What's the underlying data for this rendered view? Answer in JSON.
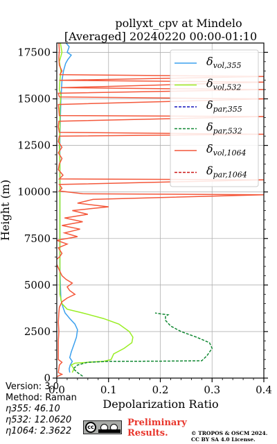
{
  "chart_data": {
    "type": "line",
    "title_line1": "pollyxt_cpv at Mindelo",
    "title_line2": "[Averaged] 20240220 00:00-01:10",
    "xlabel": "Depolarization Ratio",
    "ylabel": "Height (m)",
    "xlim": [
      0,
      0.4
    ],
    "ylim": [
      0,
      18000
    ],
    "xticks": [
      "0.0",
      "0.1",
      "0.2",
      "0.3",
      "0.4"
    ],
    "xtick_values": [
      0,
      0.1,
      0.2,
      0.3,
      0.4
    ],
    "yticks": [
      "0",
      "2500",
      "5000",
      "7500",
      "10000",
      "12500",
      "15000",
      "17500"
    ],
    "ytick_values": [
      0,
      2500,
      5000,
      7500,
      10000,
      12500,
      15000,
      17500
    ],
    "grid": true,
    "legend_placement": "top-right",
    "series": [
      {
        "name": "vol,355",
        "sym": "δ",
        "sub": "vol,355",
        "color": "#3aa0ee",
        "dash": "solid",
        "points": [
          [
            0.025,
            300
          ],
          [
            0.024,
            500
          ],
          [
            0.026,
            700
          ],
          [
            0.03,
            900
          ],
          [
            0.025,
            1100
          ],
          [
            0.028,
            1400
          ],
          [
            0.033,
            1800
          ],
          [
            0.038,
            2200
          ],
          [
            0.04,
            2600
          ],
          [
            0.035,
            2900
          ],
          [
            0.025,
            3200
          ],
          [
            0.016,
            3500
          ],
          [
            0.012,
            3800
          ],
          [
            0.008,
            4200
          ],
          [
            0.007,
            5000
          ],
          [
            0.006,
            6000
          ],
          [
            0.006,
            7000
          ],
          [
            0.006,
            8000
          ],
          [
            0.006,
            9000
          ],
          [
            0.006,
            10000
          ],
          [
            0.006,
            11000
          ],
          [
            0.006,
            12000
          ],
          [
            0.006,
            13000
          ],
          [
            0.007,
            14000
          ],
          [
            0.008,
            15000
          ],
          [
            0.01,
            16000
          ],
          [
            0.013,
            16500
          ],
          [
            0.017,
            16900
          ],
          [
            0.021,
            17100
          ],
          [
            0.028,
            17350
          ],
          [
            0.02,
            17500
          ],
          [
            0.024,
            17800
          ],
          [
            0.018,
            18000
          ]
        ]
      },
      {
        "name": "vol,532",
        "sym": "δ",
        "sub": "vol,532",
        "color": "#99ee22",
        "dash": "solid",
        "points": [
          [
            0.03,
            300
          ],
          [
            0.033,
            500
          ],
          [
            0.028,
            700
          ],
          [
            0.035,
            800
          ],
          [
            0.06,
            850
          ],
          [
            0.09,
            900
          ],
          [
            0.105,
            1000
          ],
          [
            0.11,
            1300
          ],
          [
            0.13,
            1600
          ],
          [
            0.145,
            1900
          ],
          [
            0.147,
            2200
          ],
          [
            0.14,
            2500
          ],
          [
            0.12,
            2900
          ],
          [
            0.09,
            3200
          ],
          [
            0.05,
            3500
          ],
          [
            0.02,
            3700
          ],
          [
            0.01,
            4000
          ],
          [
            0.006,
            4500
          ],
          [
            0.006,
            5500
          ],
          [
            0.006,
            6500
          ],
          [
            0.006,
            7500
          ],
          [
            0.006,
            8500
          ],
          [
            0.006,
            9500
          ],
          [
            0.006,
            10500
          ],
          [
            0.006,
            11500
          ],
          [
            0.005,
            12500
          ],
          [
            0.006,
            13500
          ],
          [
            0.006,
            14500
          ],
          [
            0.008,
            15200
          ],
          [
            0.005,
            15500
          ],
          [
            0.006,
            16000
          ],
          [
            0.008,
            16500
          ],
          [
            0.005,
            17000
          ],
          [
            0.01,
            17500
          ],
          [
            0.007,
            18000
          ]
        ]
      },
      {
        "name": "par,355",
        "sym": "δ",
        "sub": "par,355",
        "color": "#1010bb",
        "dash": "dashed",
        "points": []
      },
      {
        "name": "par,532",
        "sym": "δ",
        "sub": "par,532",
        "color": "#118833",
        "dash": "dashed",
        "points": [
          [
            0.05,
            100
          ],
          [
            0.04,
            300
          ],
          [
            0.032,
            500
          ],
          [
            0.04,
            700
          ],
          [
            0.06,
            850
          ],
          [
            0.1,
            900
          ],
          [
            0.2,
            910
          ],
          [
            0.28,
            930
          ],
          [
            0.29,
            1200
          ],
          [
            0.3,
            1600
          ],
          [
            0.295,
            1900
          ],
          [
            0.27,
            2200
          ],
          [
            0.24,
            2500
          ],
          [
            0.22,
            2800
          ],
          [
            0.21,
            3100
          ],
          [
            0.21,
            3300
          ],
          [
            0.215,
            3400
          ],
          [
            0.2,
            3450
          ],
          [
            0.19,
            3500
          ]
        ]
      },
      {
        "name": "vol,1064",
        "sym": "δ",
        "sub": "vol,1064",
        "color": "#f4573a",
        "dash": "solid",
        "points": [
          [
            0.0,
            80
          ],
          [
            0.01,
            200
          ],
          [
            0.003,
            300
          ],
          [
            0.004,
            500
          ],
          [
            0.005,
            700
          ],
          [
            0.01,
            850
          ],
          [
            0.003,
            1000
          ],
          [
            0.003,
            1500
          ],
          [
            0.003,
            2000
          ],
          [
            0.004,
            2500
          ],
          [
            0.003,
            3000
          ],
          [
            0.004,
            3500
          ],
          [
            0.005,
            3800
          ],
          [
            0.01,
            4100
          ],
          [
            0.02,
            4300
          ],
          [
            0.035,
            4500
          ],
          [
            0.025,
            4700
          ],
          [
            0.02,
            4900
          ],
          [
            0.03,
            5100
          ],
          [
            0.018,
            5300
          ],
          [
            0.01,
            5500
          ],
          [
            0.005,
            5800
          ],
          [
            0.0,
            6100
          ],
          [
            -0.004,
            6300
          ],
          [
            0.005,
            6500
          ],
          [
            0.01,
            6700
          ],
          [
            0.003,
            7000
          ],
          [
            0.02,
            7200
          ],
          [
            0.0,
            7400
          ],
          [
            0.04,
            7600
          ],
          [
            0.015,
            7800
          ],
          [
            0.045,
            8000
          ],
          [
            0.01,
            8200
          ],
          [
            0.05,
            8400
          ],
          [
            0.015,
            8600
          ],
          [
            0.06,
            8800
          ],
          [
            0.03,
            9000
          ],
          [
            0.1,
            9200
          ],
          [
            0.04,
            9400
          ],
          [
            0.07,
            9600
          ],
          [
            0.4,
            9850
          ],
          [
            0.05,
            9900
          ],
          [
            0.005,
            10050
          ],
          [
            0.01,
            10200
          ],
          [
            0.005,
            10400
          ],
          [
            0.4,
            10650
          ],
          [
            0.005,
            10700
          ],
          [
            0.012,
            10900
          ],
          [
            0.003,
            11200
          ],
          [
            0.005,
            11500
          ],
          [
            0.01,
            11800
          ],
          [
            0.003,
            12100
          ],
          [
            0.01,
            12400
          ],
          [
            0.003,
            12700
          ],
          [
            0.005,
            13000
          ],
          [
            0.4,
            13100
          ],
          [
            0.005,
            13200
          ],
          [
            0.003,
            13500
          ],
          [
            0.004,
            13800
          ],
          [
            0.4,
            14050
          ],
          [
            0.005,
            14100
          ],
          [
            0.004,
            14400
          ],
          [
            0.003,
            14700
          ],
          [
            0.4,
            15000
          ],
          [
            0.005,
            15100
          ],
          [
            0.003,
            15300
          ],
          [
            0.4,
            15500
          ],
          [
            0.008,
            15600
          ],
          [
            0.4,
            15900
          ],
          [
            0.005,
            16000
          ],
          [
            0.4,
            16200
          ],
          [
            0.006,
            16300
          ],
          [
            0.01,
            16500
          ],
          [
            0.005,
            16800
          ],
          [
            0.004,
            17200
          ],
          [
            0.005,
            17600
          ],
          [
            0.004,
            18000
          ]
        ]
      },
      {
        "name": "par,1064",
        "sym": "δ",
        "sub": "par,1064",
        "color": "#cc1414",
        "dash": "dashed",
        "points": []
      }
    ]
  },
  "info": {
    "version": "Version: 3.0",
    "method": "Method: Raman",
    "eta355": "η355:  46.10",
    "eta532": "η532: 12.0620",
    "eta1064": "η1064: 2.3622"
  },
  "footer": {
    "cc_label": "cc",
    "prelim_line1": "Preliminary",
    "prelim_line2": "Results.",
    "copyright_line1": "© TROPOS & OSCM 2024.",
    "copyright_line2": "CC BY SA 4.0 License."
  }
}
